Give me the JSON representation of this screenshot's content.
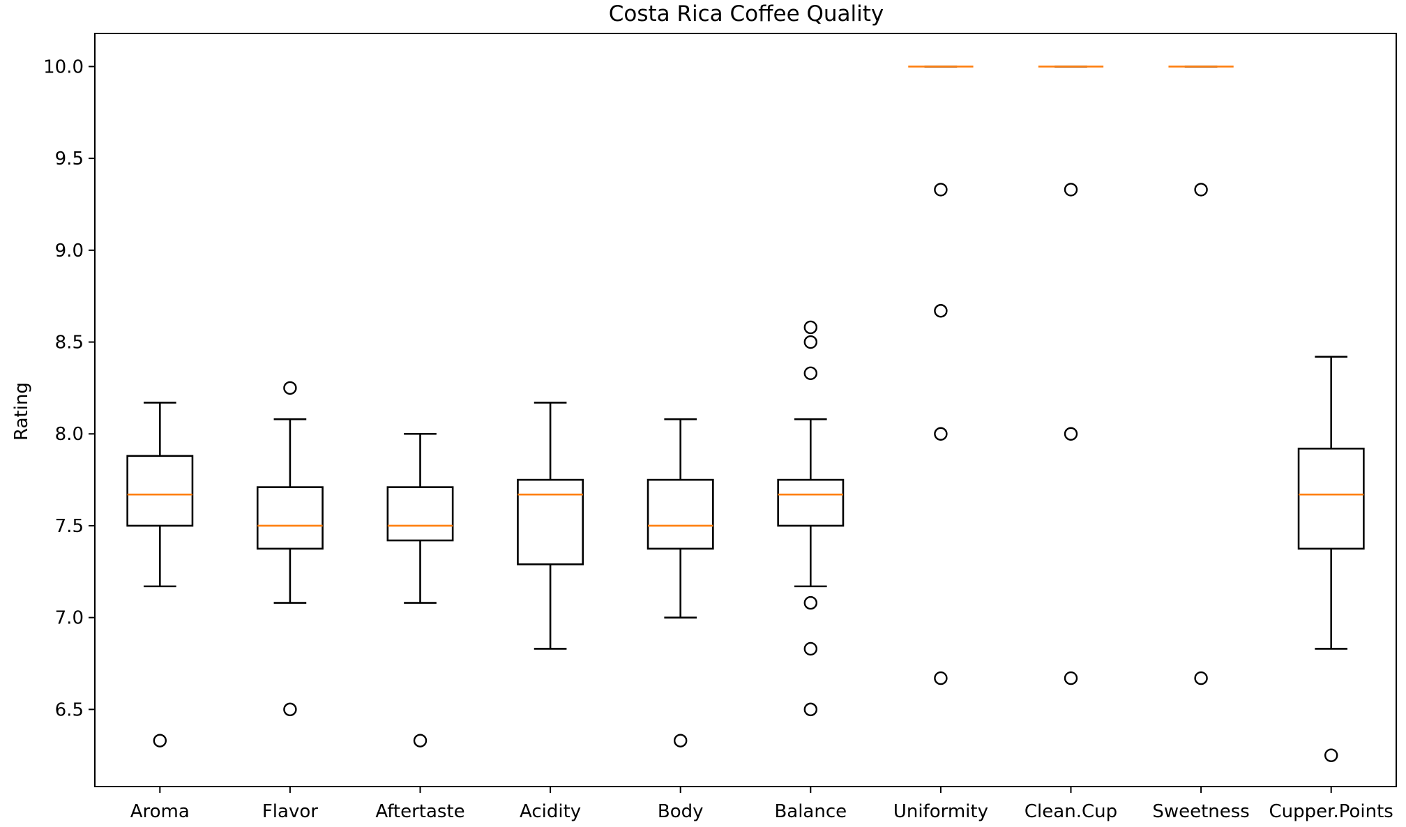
{
  "chart_data": {
    "type": "box",
    "title": "Costa Rica Coffee Quality",
    "xlabel": "",
    "ylabel": "Rating",
    "ylim": [
      6.08,
      10.18
    ],
    "yticks": [
      6.5,
      7.0,
      7.5,
      8.0,
      8.5,
      9.0,
      9.5,
      10.0
    ],
    "ytick_labels": [
      "6.5",
      "7.0",
      "7.5",
      "8.0",
      "8.5",
      "9.0",
      "9.5",
      "10.0"
    ],
    "grid": false,
    "colors": {
      "box": "#000000",
      "median": "#ff7f0e",
      "flier": "#000000",
      "background": "#ffffff"
    },
    "categories": [
      "Aroma",
      "Flavor",
      "Aftertaste",
      "Acidity",
      "Body",
      "Balance",
      "Uniformity",
      "Clean.Cup",
      "Sweetness",
      "Cupper.Points"
    ],
    "boxes": [
      {
        "whisker_low": 7.17,
        "q1": 7.5,
        "median": 7.67,
        "q3": 7.88,
        "whisker_high": 8.17,
        "fliers": [
          6.33
        ]
      },
      {
        "whisker_low": 7.08,
        "q1": 7.375,
        "median": 7.5,
        "q3": 7.71,
        "whisker_high": 8.08,
        "fliers": [
          8.25,
          6.5
        ]
      },
      {
        "whisker_low": 7.08,
        "q1": 7.42,
        "median": 7.5,
        "q3": 7.71,
        "whisker_high": 8.0,
        "fliers": [
          6.33
        ]
      },
      {
        "whisker_low": 6.83,
        "q1": 7.29,
        "median": 7.67,
        "q3": 7.75,
        "whisker_high": 8.17,
        "fliers": []
      },
      {
        "whisker_low": 7.0,
        "q1": 7.375,
        "median": 7.5,
        "q3": 7.75,
        "whisker_high": 8.08,
        "fliers": [
          6.33
        ]
      },
      {
        "whisker_low": 7.17,
        "q1": 7.5,
        "median": 7.67,
        "q3": 7.75,
        "whisker_high": 8.08,
        "fliers": [
          8.58,
          8.5,
          8.33,
          7.08,
          6.83,
          6.5
        ]
      },
      {
        "whisker_low": 10.0,
        "q1": 10.0,
        "median": 10.0,
        "q3": 10.0,
        "whisker_high": 10.0,
        "fliers": [
          9.33,
          8.67,
          8.0,
          6.67
        ]
      },
      {
        "whisker_low": 10.0,
        "q1": 10.0,
        "median": 10.0,
        "q3": 10.0,
        "whisker_high": 10.0,
        "fliers": [
          9.33,
          8.0,
          6.67
        ]
      },
      {
        "whisker_low": 10.0,
        "q1": 10.0,
        "median": 10.0,
        "q3": 10.0,
        "whisker_high": 10.0,
        "fliers": [
          9.33,
          6.67
        ]
      },
      {
        "whisker_low": 6.83,
        "q1": 7.375,
        "median": 7.67,
        "q3": 7.92,
        "whisker_high": 8.42,
        "fliers": [
          6.25
        ]
      }
    ]
  }
}
